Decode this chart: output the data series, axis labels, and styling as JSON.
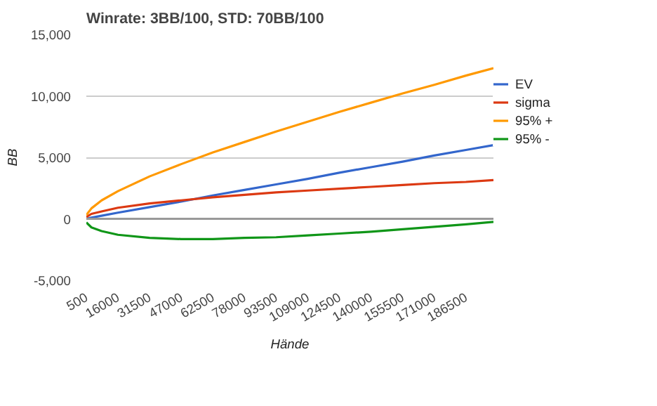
{
  "chart_data": {
    "type": "line",
    "title": "Winrate: 3BB/100, STD: 70BB/100",
    "xlabel": "Hände",
    "ylabel": "BB",
    "x": [
      500,
      3000,
      8000,
      16000,
      31500,
      47000,
      62500,
      78000,
      93500,
      109000,
      124500,
      140000,
      155500,
      171000,
      186500,
      200000
    ],
    "series": [
      {
        "name": "EV",
        "color": "#3366cc",
        "values": [
          0,
          100,
          250,
          500,
          950,
          1400,
          1900,
          2350,
          2800,
          3250,
          3750,
          4200,
          4650,
          5150,
          5600,
          6000
        ]
      },
      {
        "name": "sigma",
        "color": "#dc3912",
        "values": [
          150,
          400,
          600,
          900,
          1250,
          1500,
          1750,
          1950,
          2150,
          2300,
          2450,
          2600,
          2750,
          2900,
          3000,
          3150
        ]
      },
      {
        "name": "95% +",
        "color": "#ff9900",
        "values": [
          300,
          850,
          1500,
          2250,
          3450,
          4450,
          5400,
          6250,
          7100,
          7900,
          8700,
          9450,
          10200,
          10900,
          11650,
          12250
        ]
      },
      {
        "name": "95% -",
        "color": "#109618",
        "values": [
          -300,
          -700,
          -1000,
          -1300,
          -1550,
          -1650,
          -1650,
          -1550,
          -1500,
          -1350,
          -1200,
          -1050,
          -850,
          -650,
          -450,
          -250
        ]
      }
    ],
    "xlim": [
      500,
      200000
    ],
    "xticks": [
      500,
      16000,
      31500,
      47000,
      62500,
      78000,
      93500,
      109000,
      124500,
      140000,
      155500,
      171000,
      186500
    ],
    "ylim": [
      -5000,
      15000
    ],
    "yticks": [
      {
        "value": -5000,
        "label": "-5,000"
      },
      0,
      {
        "value": 5000,
        "label": "5,000"
      },
      {
        "value": 10000,
        "label": "10,000"
      },
      {
        "value": 15000,
        "label": "15,000"
      }
    ],
    "ref_lines": [
      {
        "axis": "y",
        "value": 0,
        "color": "#999999"
      }
    ],
    "grid": "y",
    "legend": "right",
    "marker": "none",
    "line_style": "solid"
  }
}
